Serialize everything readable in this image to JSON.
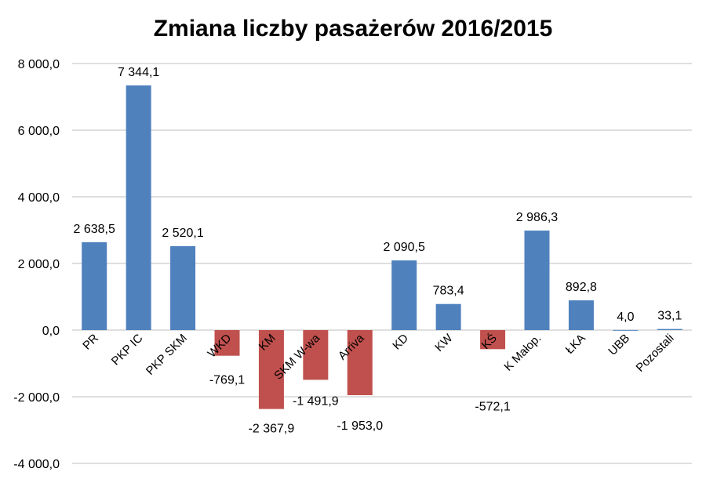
{
  "chart_data": {
    "type": "bar",
    "title": "Zmiana liczby pasażerów 2016/2015",
    "xlabel": "",
    "ylabel": "",
    "ylim": [
      -4000,
      8000
    ],
    "yticks": [
      8000,
      6000,
      4000,
      2000,
      0,
      -2000,
      -4000
    ],
    "ytick_labels": [
      "8 000,0",
      "6 000,0",
      "4 000,0",
      "2 000,0",
      "0,0",
      "-2 000,0",
      "-4 000,0"
    ],
    "grid": true,
    "categories": [
      "PR",
      "PKP IC",
      "PKP SKM",
      "WKD",
      "KM",
      "SKM W-wa",
      "Arriva",
      "KD",
      "KW",
      "KŚ",
      "K Małop.",
      "ŁKA",
      "UBB",
      "Pozostali"
    ],
    "values": [
      2638.5,
      7344.1,
      2520.1,
      -769.1,
      -2367.9,
      -1491.9,
      -1953.0,
      2090.5,
      783.4,
      -572.1,
      2986.3,
      892.8,
      4.0,
      33.1
    ],
    "data_labels": [
      "2 638,5",
      "7 344,1",
      "2 520,1",
      "-769,1",
      "-2 367,9",
      "-1 491,9",
      "-1 953,0",
      "2 090,5",
      "783,4",
      "-572,1",
      "2 986,3",
      "892,8",
      "4,0",
      "33,1"
    ],
    "colors": {
      "positive": "#4F81BD",
      "negative": "#C0504D",
      "grid": "#BFBFBF"
    }
  }
}
